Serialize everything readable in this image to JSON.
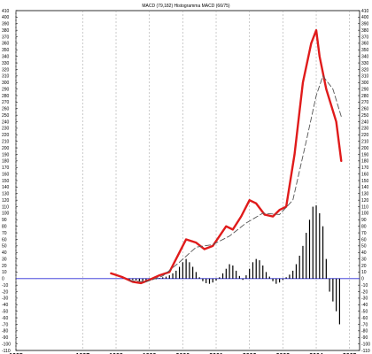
{
  "chart_data": {
    "type": "line",
    "title": "MACD (79,182) Histogramma MACD (66/75)",
    "x_ticks": [
      "1995",
      "1997",
      "1998",
      "1999",
      "2000",
      "2001",
      "2002",
      "2003",
      "2004",
      "2005"
    ],
    "y_ticks": [
      "410",
      "400",
      "390",
      "380",
      "370",
      "360",
      "350",
      "340",
      "330",
      "320",
      "310",
      "300",
      "290",
      "280",
      "270",
      "260",
      "250",
      "240",
      "230",
      "220",
      "210",
      "200",
      "190",
      "180",
      "170",
      "160",
      "150",
      "140",
      "130",
      "120",
      "110",
      "100",
      "90",
      "80",
      "70",
      "60",
      "50",
      "40",
      "30",
      "20",
      "10",
      "0",
      "-10",
      "-20",
      "-30",
      "-40",
      "-50",
      "-60",
      "-70",
      "-80",
      "-90",
      "-100",
      "-110"
    ],
    "ylim": [
      -110,
      410
    ],
    "grid": "vertical dashed",
    "series": [
      {
        "style": "red thick line",
        "color": "#e01b1b",
        "points": [
          [
            1997.85,
            8
          ],
          [
            1998.2,
            2
          ],
          [
            1998.5,
            -5
          ],
          [
            1998.75,
            -7
          ],
          [
            1999.0,
            -2
          ],
          [
            1999.3,
            5
          ],
          [
            1999.6,
            10
          ],
          [
            1999.85,
            35
          ],
          [
            2000.1,
            60
          ],
          [
            2000.4,
            55
          ],
          [
            2000.65,
            45
          ],
          [
            2000.9,
            50
          ],
          [
            2001.1,
            65
          ],
          [
            2001.3,
            80
          ],
          [
            2001.5,
            75
          ],
          [
            2001.75,
            95
          ],
          [
            2002.0,
            120
          ],
          [
            2002.2,
            115
          ],
          [
            2002.45,
            98
          ],
          [
            2002.7,
            95
          ],
          [
            2002.9,
            105
          ],
          [
            2003.1,
            110
          ],
          [
            2003.35,
            190
          ],
          [
            2003.6,
            300
          ],
          [
            2003.85,
            360
          ],
          [
            2004.0,
            380
          ],
          [
            2004.1,
            340
          ],
          [
            2004.3,
            290
          ],
          [
            2004.45,
            265
          ],
          [
            2004.6,
            240
          ],
          [
            2004.75,
            180
          ]
        ]
      },
      {
        "style": "dashed signal line",
        "color": "#555555",
        "points": [
          [
            1998.4,
            -3
          ],
          [
            1998.9,
            -5
          ],
          [
            1999.4,
            4
          ],
          [
            1999.9,
            25
          ],
          [
            2000.4,
            48
          ],
          [
            2000.9,
            52
          ],
          [
            2001.4,
            65
          ],
          [
            2001.9,
            85
          ],
          [
            2002.4,
            100
          ],
          [
            2002.9,
            98
          ],
          [
            2003.3,
            120
          ],
          [
            2003.7,
            210
          ],
          [
            2004.0,
            280
          ],
          [
            2004.2,
            310
          ],
          [
            2004.5,
            290
          ],
          [
            2004.75,
            248
          ]
        ]
      }
    ],
    "histogram": {
      "color": "#000000",
      "x": [
        1998.3,
        1998.4,
        1998.5,
        1998.6,
        1998.7,
        1998.8,
        1998.9,
        1999.0,
        1999.1,
        1999.2,
        1999.3,
        1999.4,
        1999.5,
        1999.6,
        1999.7,
        1999.8,
        1999.9,
        2000.0,
        2000.1,
        2000.2,
        2000.3,
        2000.4,
        2000.5,
        2000.6,
        2000.7,
        2000.8,
        2000.9,
        2001.0,
        2001.1,
        2001.2,
        2001.3,
        2001.4,
        2001.5,
        2001.6,
        2001.7,
        2001.8,
        2001.9,
        2002.0,
        2002.1,
        2002.2,
        2002.3,
        2002.4,
        2002.5,
        2002.6,
        2002.7,
        2002.8,
        2002.9,
        2003.0,
        2003.1,
        2003.2,
        2003.3,
        2003.4,
        2003.5,
        2003.6,
        2003.7,
        2003.8,
        2003.9,
        2004.0,
        2004.1,
        2004.2,
        2004.3,
        2004.4,
        2004.5,
        2004.6,
        2004.7
      ],
      "values": [
        -1,
        -2,
        -2,
        -3,
        -4,
        -4,
        -3,
        -3,
        -2,
        -1,
        1,
        2,
        3,
        5,
        8,
        12,
        18,
        25,
        30,
        25,
        18,
        10,
        2,
        -4,
        -7,
        -8,
        -6,
        -3,
        2,
        8,
        15,
        22,
        20,
        12,
        4,
        -2,
        5,
        15,
        25,
        30,
        28,
        20,
        10,
        3,
        -4,
        -8,
        -6,
        -2,
        2,
        6,
        12,
        22,
        35,
        50,
        70,
        90,
        110,
        112,
        100,
        80,
        30,
        -20,
        -35,
        -50,
        -70
      ]
    }
  }
}
